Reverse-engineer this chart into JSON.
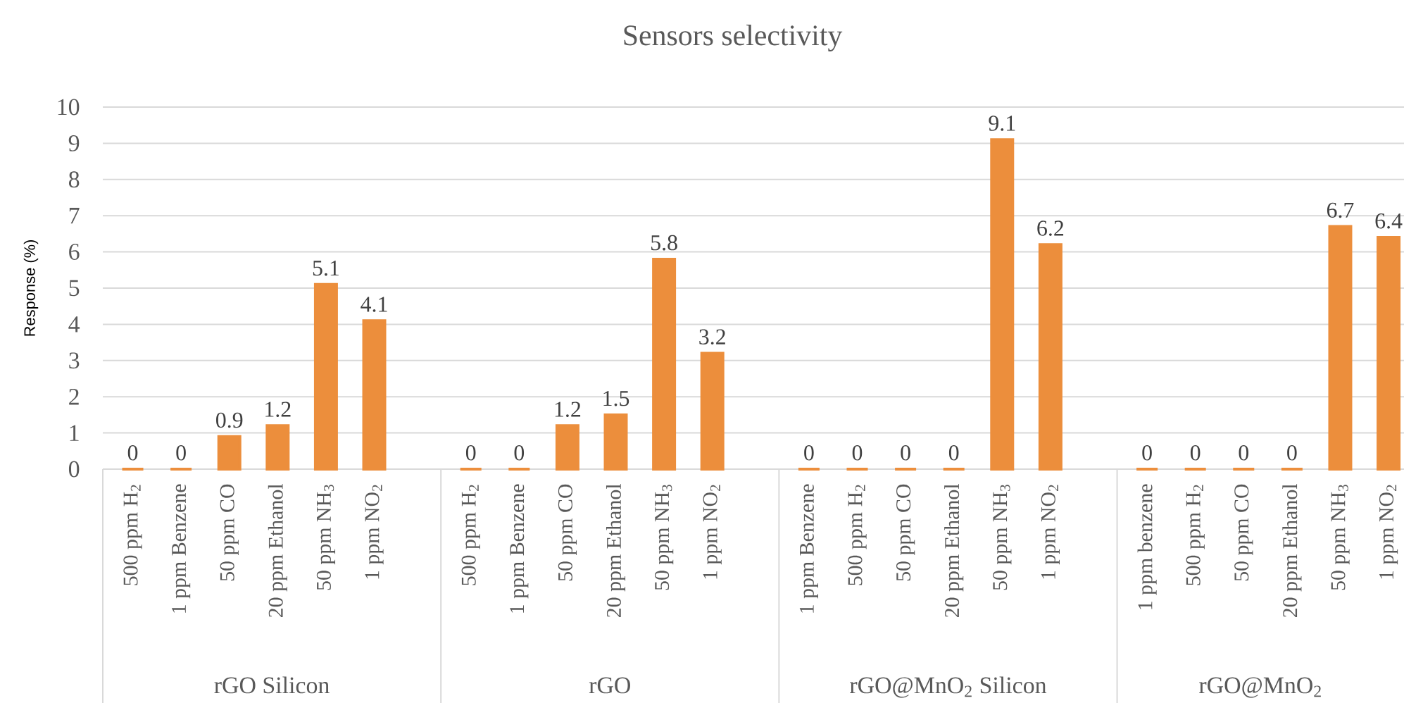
{
  "chart_data": {
    "type": "bar",
    "title": "Sensors selectivity",
    "ylabel": "Response (%)",
    "categories": [
      "500 ppm H$_{2}$",
      "1 ppm Benzene",
      "50 ppm CO",
      "20 ppm Ethanol",
      "50 ppm NH$_{3}$",
      "1 ppm NO$_{2}$",
      "500 ppm H$_{2}$",
      "1 ppm Benzene",
      "50 ppm CO",
      "20 ppm Ethanol",
      "50 ppm NH$_{3}$",
      "1 ppm NO$_{2}$",
      "1 ppm Benzene",
      "500 ppm H$_{2}$",
      "50 ppm CO",
      "20 ppm Ethanol",
      "50 ppm NH$_{3}$",
      "1 ppm NO$_{2}$",
      "1 ppm benzene",
      "500 ppm H$_{2}$",
      "50 ppm CO",
      "20 ppm Ethanol",
      "50 ppm NH$_{3}$",
      "1 ppm NO$_{2}$"
    ],
    "values": [
      0,
      0,
      0.9,
      1.2,
      5.1,
      4.1,
      0,
      0,
      1.2,
      1.5,
      5.8,
      3.2,
      0,
      0,
      0,
      0,
      9.1,
      6.2,
      0,
      0,
      0,
      0,
      6.7,
      6.4
    ],
    "color": "#EC8E3C",
    "ylim": [
      0,
      10
    ],
    "yticks": [
      0,
      1,
      2,
      3,
      4,
      5,
      6,
      7,
      8,
      9,
      10
    ],
    "grid": "y",
    "data_labels": true,
    "annotations": [
      "rGO Silicon",
      "rGO",
      "rGO@MnO$_{2}$ Silicon",
      "rGO@MnO$_{2}$"
    ]
  }
}
